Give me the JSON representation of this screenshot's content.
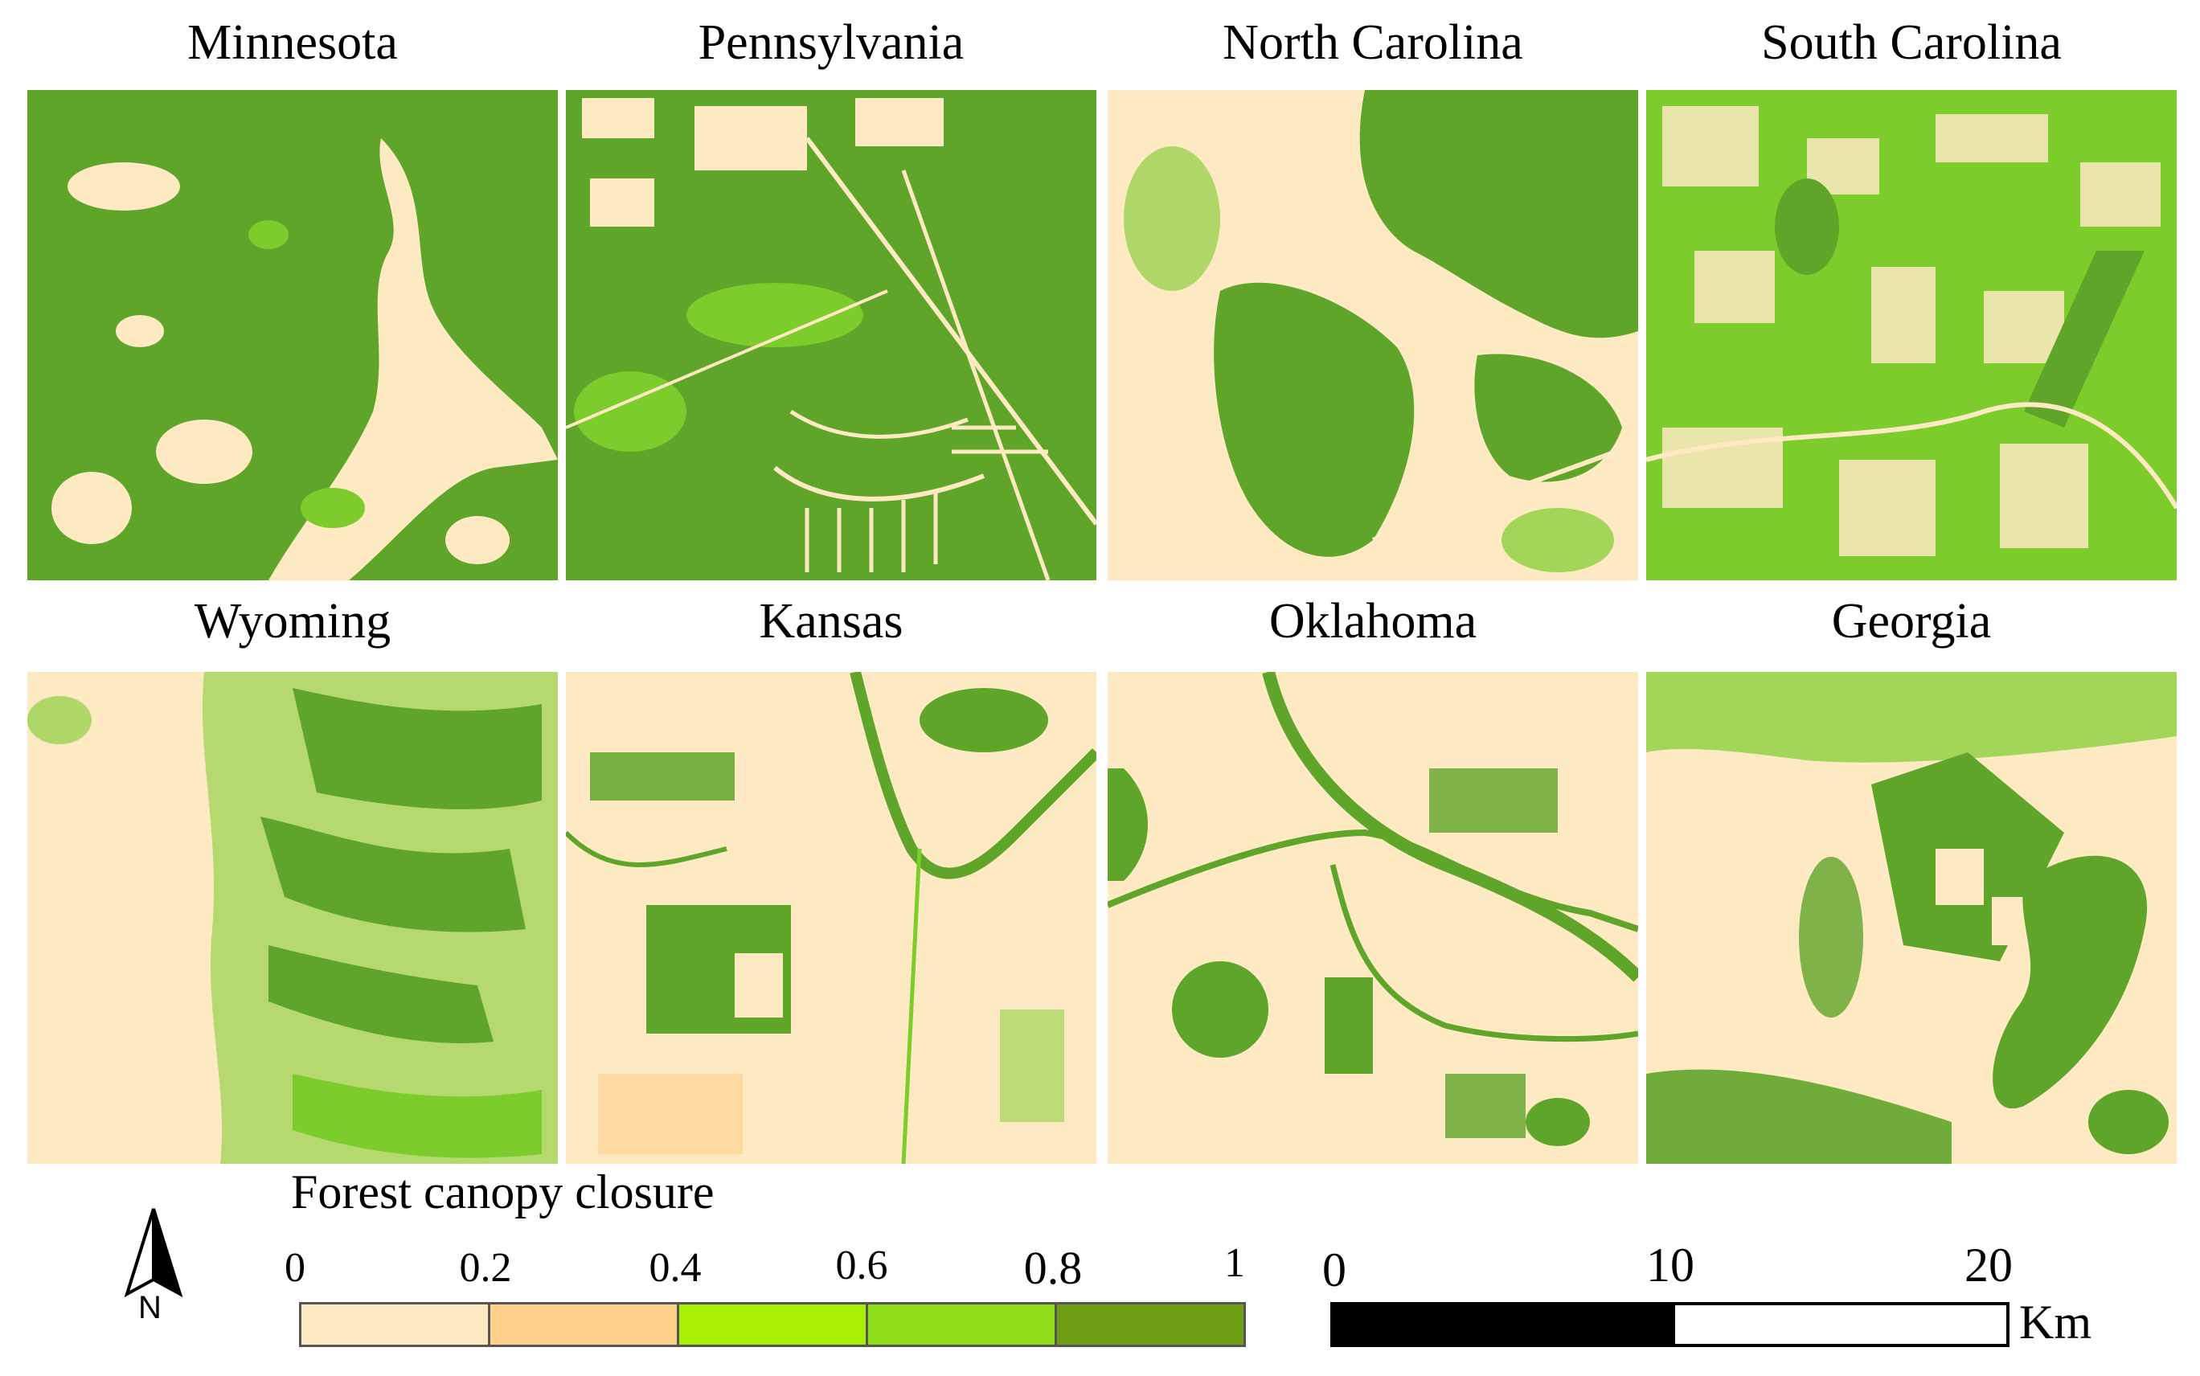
{
  "panels": [
    {
      "name": "Minnesota"
    },
    {
      "name": "Pennsylvania"
    },
    {
      "name": "North Carolina"
    },
    {
      "name": "South Carolina"
    },
    {
      "name": "Wyoming"
    },
    {
      "name": "Kansas"
    },
    {
      "name": "Oklahoma"
    },
    {
      "name": "Georgia"
    }
  ],
  "legend": {
    "title": "Forest canopy closure",
    "ticks": [
      "0",
      "0.2",
      "0.4",
      "0.6",
      "0.8",
      "1"
    ],
    "classes": [
      {
        "range": "0-0.2",
        "color": "#fde9c2"
      },
      {
        "range": "0.2-0.4",
        "color": "#fdd08c"
      },
      {
        "range": "0.4-0.6",
        "color": "#a8f000"
      },
      {
        "range": "0.6-0.8",
        "color": "#8fdc1a"
      },
      {
        "range": "0.8-1",
        "color": "#6e9e14"
      }
    ]
  },
  "north_arrow": {
    "label": "N"
  },
  "scale_bar": {
    "ticks": [
      "0",
      "10",
      "20"
    ],
    "unit": "Km"
  },
  "colors": {
    "background_land": "#fde9c2",
    "forest_dense": "#5fa52a",
    "forest_light": "#7ccc2c"
  }
}
